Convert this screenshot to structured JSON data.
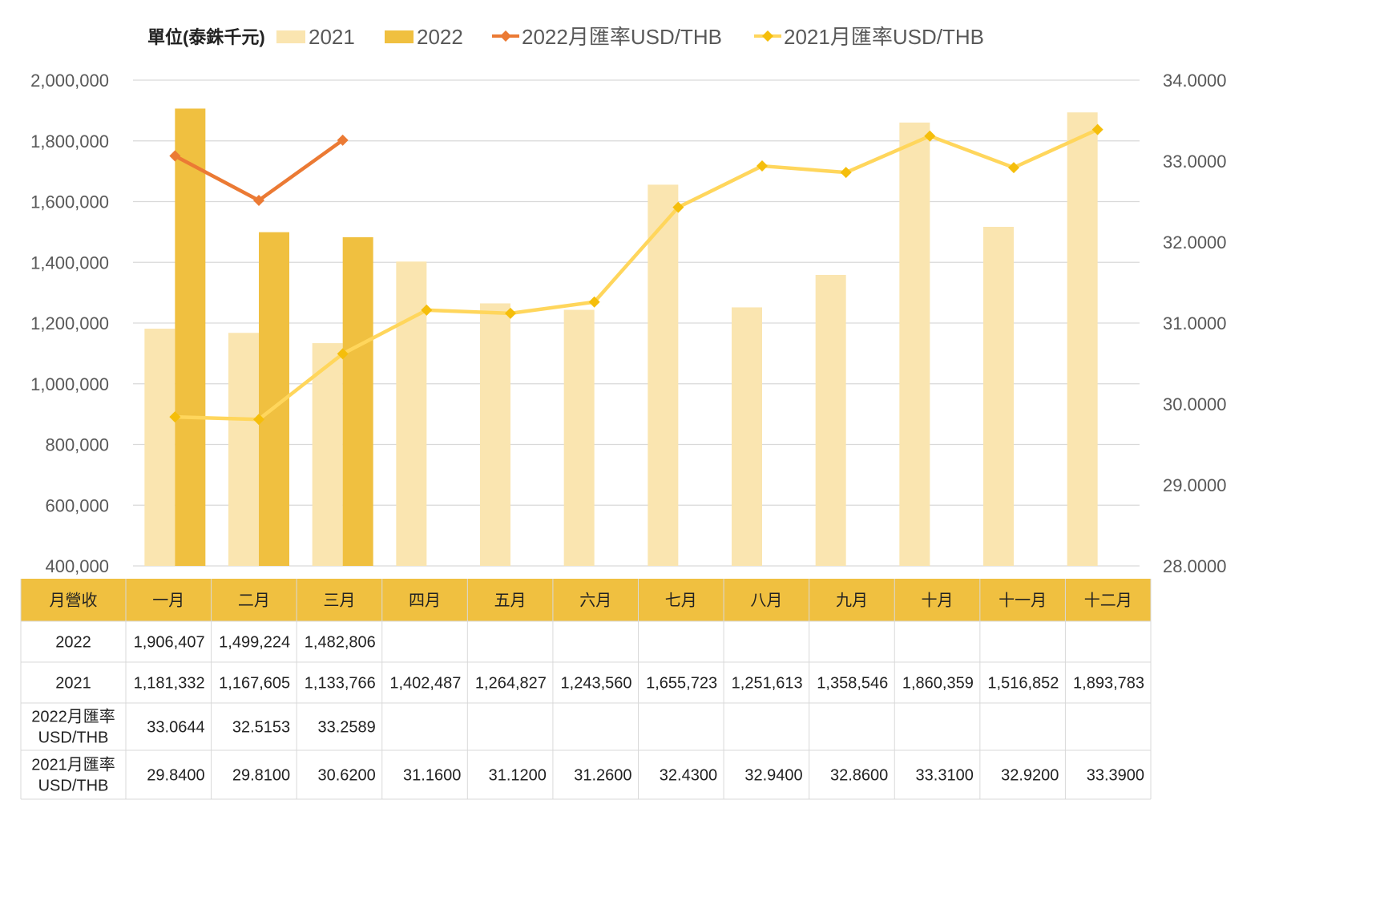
{
  "chart_data": {
    "type": "bar",
    "categories": [
      "一月",
      "二月",
      "三月",
      "四月",
      "五月",
      "六月",
      "七月",
      "八月",
      "九月",
      "十月",
      "十一月",
      "十二月"
    ],
    "legend": {
      "unit_label": "單位(泰銖千元)",
      "placement": "top"
    },
    "series": [
      {
        "name": "2021",
        "kind": "bar",
        "axis": "left",
        "color": "#FAE5B0",
        "values": [
          1181332,
          1167605,
          1133766,
          1402487,
          1264827,
          1243560,
          1655723,
          1251613,
          1358546,
          1860359,
          1516852,
          1893783
        ]
      },
      {
        "name": "2022",
        "kind": "bar",
        "axis": "left",
        "color": "#F0C040",
        "values": [
          1906407,
          1499224,
          1482806,
          null,
          null,
          null,
          null,
          null,
          null,
          null,
          null,
          null
        ]
      },
      {
        "name": "2022月匯率USD/THB",
        "kind": "line",
        "axis": "right",
        "color": "#EB7A34",
        "values": [
          33.0644,
          32.5153,
          33.2589,
          null,
          null,
          null,
          null,
          null,
          null,
          null,
          null,
          null
        ]
      },
      {
        "name": "2021月匯率USD/THB",
        "kind": "line",
        "axis": "right",
        "color": "#FFD65C",
        "marker_color": "#F5BE0B",
        "values": [
          29.84,
          29.81,
          30.62,
          31.16,
          31.12,
          31.26,
          32.43,
          32.94,
          32.86,
          33.31,
          32.92,
          33.39
        ]
      }
    ],
    "y_left": {
      "ylim": [
        400000,
        2000000
      ],
      "ticks": [
        400000,
        600000,
        800000,
        1000000,
        1200000,
        1400000,
        1600000,
        1800000,
        2000000
      ],
      "tick_labels": [
        "400,000",
        "600,000",
        "800,000",
        "1,000,000",
        "1,200,000",
        "1,400,000",
        "1,600,000",
        "1,800,000",
        "2,000,000"
      ]
    },
    "y_right": {
      "ylim": [
        28,
        34
      ],
      "ticks": [
        28,
        29,
        30,
        31,
        32,
        33,
        34
      ],
      "tick_labels": [
        "28.0000",
        "29.0000",
        "30.0000",
        "31.0000",
        "32.0000",
        "33.0000",
        "34.0000"
      ]
    },
    "grid": true,
    "table": {
      "header_label": "月營收",
      "header_color": "#F0C040",
      "rows": [
        {
          "label_lines": [
            "2022"
          ],
          "cells": [
            "1,906,407",
            "1,499,224",
            "1,482,806",
            "",
            "",
            "",
            "",
            "",
            "",
            "",
            "",
            ""
          ]
        },
        {
          "label_lines": [
            "2021"
          ],
          "cells": [
            "1,181,332",
            "1,167,605",
            "1,133,766",
            "1,402,487",
            "1,264,827",
            "1,243,560",
            "1,655,723",
            "1,251,613",
            "1,358,546",
            "1,860,359",
            "1,516,852",
            "1,893,783"
          ]
        },
        {
          "label_lines": [
            "2022月匯率",
            "USD/THB"
          ],
          "cells": [
            "33.0644",
            "32.5153",
            "33.2589",
            "",
            "",
            "",
            "",
            "",
            "",
            "",
            "",
            ""
          ]
        },
        {
          "label_lines": [
            "2021月匯率",
            "USD/THB"
          ],
          "cells": [
            "29.8400",
            "29.8100",
            "30.6200",
            "31.1600",
            "31.1200",
            "31.2600",
            "32.4300",
            "32.9400",
            "32.8600",
            "33.3100",
            "32.9200",
            "33.3900"
          ]
        }
      ]
    }
  }
}
